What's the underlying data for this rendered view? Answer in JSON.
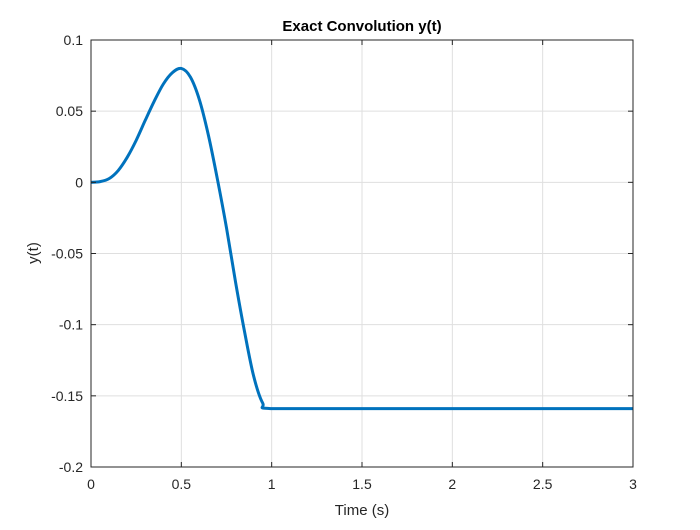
{
  "chart_data": {
    "type": "line",
    "title": "Exact Convolution y(t)",
    "xlabel": "Time (s)",
    "ylabel": "y(t)",
    "xlim": [
      0,
      3
    ],
    "ylim": [
      -0.2,
      0.1
    ],
    "grid": true,
    "x_ticks": [
      0,
      0.5,
      1,
      1.5,
      2,
      2.5,
      3
    ],
    "x_tick_labels": [
      "0",
      "0.5",
      "1",
      "1.5",
      "2",
      "2.5",
      "3"
    ],
    "y_ticks": [
      -0.2,
      -0.15,
      -0.1,
      -0.05,
      0,
      0.05,
      0.1
    ],
    "y_tick_labels": [
      "-0.2",
      "-0.15",
      "-0.1",
      "-0.05",
      "0",
      "0.05",
      "0.1"
    ],
    "series": [
      {
        "color": "#0072BD",
        "x": [
          0,
          0.05,
          0.1,
          0.15,
          0.2,
          0.25,
          0.3,
          0.35,
          0.4,
          0.45,
          0.5,
          0.55,
          0.6,
          0.65,
          0.7,
          0.75,
          0.8,
          0.85,
          0.9,
          0.95,
          1.0,
          1.5,
          2.0,
          2.5,
          3.0
        ],
        "y": [
          0,
          0.0005,
          0.0026,
          0.0082,
          0.0175,
          0.0295,
          0.0435,
          0.057,
          0.069,
          0.077,
          0.08,
          0.074,
          0.058,
          0.033,
          0.002,
          -0.032,
          -0.07,
          -0.105,
          -0.136,
          -0.155,
          -0.159,
          -0.159,
          -0.159,
          -0.159,
          -0.159
        ]
      }
    ]
  }
}
